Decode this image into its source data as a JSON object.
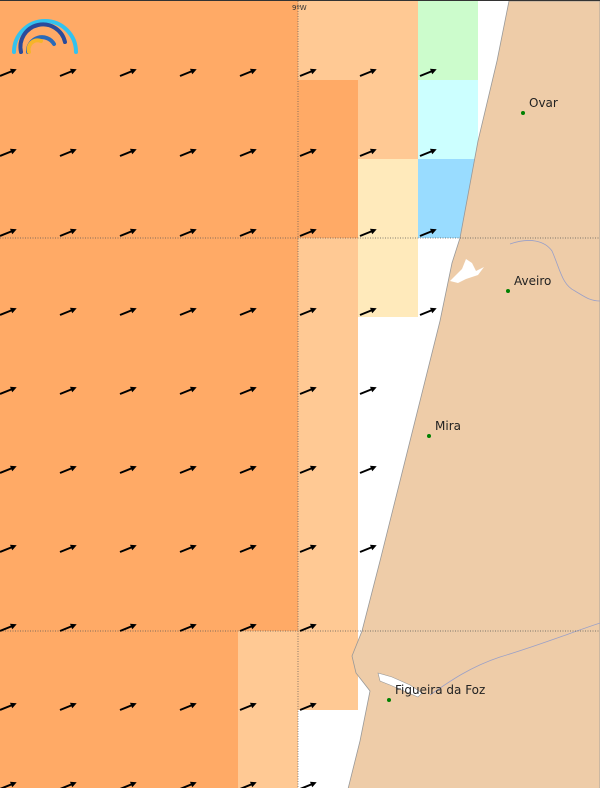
{
  "map": {
    "graticule_label": "9ºW",
    "cities": [
      {
        "name": "Ovar"
      },
      {
        "name": "Aveiro"
      },
      {
        "name": "Mira"
      },
      {
        "name": "Figueira da Foz"
      }
    ],
    "colors": {
      "dark_orange": "#ffaa66",
      "light_orange": "#ffc994",
      "pale_yellow": "#ffeabb",
      "light_green": "#ccfccc",
      "light_cyan": "#ccffff",
      "light_blue": "#99dcff",
      "land": "#eecca8",
      "city_dot": "#008000"
    },
    "logo": "rainbow-arc-logo"
  }
}
